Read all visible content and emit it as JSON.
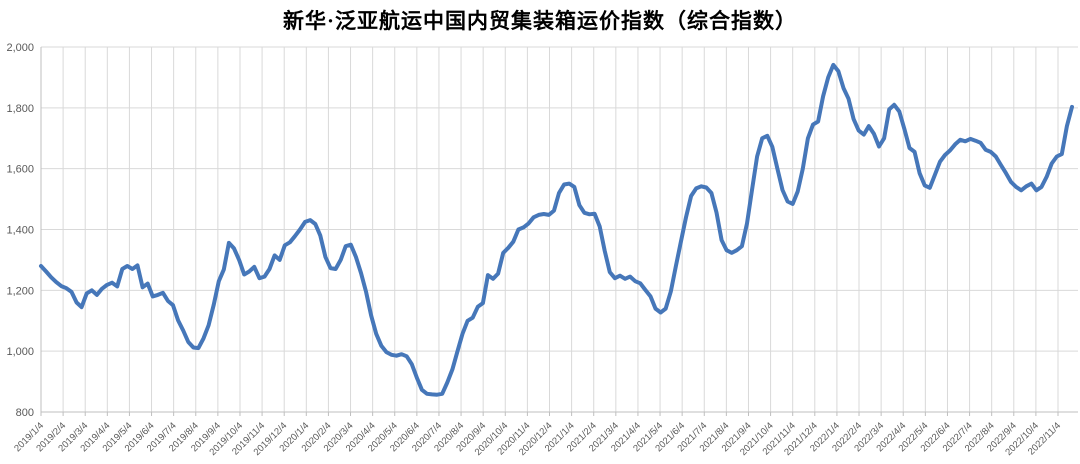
{
  "title": "新华·泛亚航运中国内贸集装箱运价指数（综合指数）",
  "colors": {
    "line": "#4677b9",
    "grid": "#d9d9d9",
    "axis": "#bfbfbf",
    "tick_label": "#595959",
    "title": "#000000",
    "background": "#ffffff"
  },
  "y_axis": {
    "min": 800,
    "max": 2000,
    "step": 200,
    "tick_labels": [
      "2,000",
      "1,800",
      "1,600",
      "1,400",
      "1,200",
      "1,000",
      "800"
    ],
    "tick_values": [
      2000,
      1800,
      1600,
      1400,
      1200,
      1000,
      800
    ]
  },
  "x_axis": {
    "tick_labels": [
      "2019/1/4",
      "2019/2/4",
      "2019/3/4",
      "2019/4/4",
      "2019/5/4",
      "2019/6/4",
      "2019/7/4",
      "2019/8/4",
      "2019/9/4",
      "2019/10/4",
      "2019/11/4",
      "2019/12/4",
      "2020/1/4",
      "2020/2/4",
      "2020/3/4",
      "2020/4/4",
      "2020/5/4",
      "2020/6/4",
      "2020/7/4",
      "2020/8/4",
      "2020/9/4",
      "2020/10/4",
      "2020/11/4",
      "2020/12/4",
      "2021/1/4",
      "2021/2/4",
      "2021/3/4",
      "2021/4/4",
      "2021/5/4",
      "2021/6/4",
      "2021/7/4",
      "2021/8/4",
      "2021/9/4",
      "2021/10/4",
      "2021/11/4",
      "2021/12/4",
      "2022/1/4",
      "2022/2/4",
      "2022/3/4",
      "2022/4/4",
      "2022/5/4",
      "2022/6/4",
      "2022/7/4",
      "2022/8/4",
      "2022/9/4",
      "2022/10/4",
      "2022/11/4"
    ]
  },
  "chart_data": {
    "type": "line",
    "title": "新华·泛亚航运中国内贸集装箱运价指数（综合指数）",
    "xlabel": "",
    "ylabel": "",
    "ylim": [
      800,
      2000
    ],
    "grid": true,
    "legend": false,
    "x_start": "2019/1/4",
    "x_end": "2022/11/25",
    "interval": "weekly",
    "series_name": "综合指数",
    "values": [
      1280,
      1262,
      1243,
      1227,
      1214,
      1207,
      1195,
      1160,
      1145,
      1190,
      1200,
      1185,
      1205,
      1218,
      1225,
      1213,
      1270,
      1280,
      1270,
      1282,
      1210,
      1222,
      1180,
      1185,
      1192,
      1165,
      1151,
      1101,
      1068,
      1030,
      1012,
      1010,
      1042,
      1085,
      1152,
      1230,
      1268,
      1356,
      1338,
      1300,
      1252,
      1262,
      1277,
      1240,
      1245,
      1270,
      1315,
      1300,
      1348,
      1358,
      1378,
      1400,
      1425,
      1431,
      1418,
      1380,
      1310,
      1273,
      1270,
      1300,
      1345,
      1350,
      1310,
      1257,
      1196,
      1118,
      1057,
      1018,
      997,
      988,
      985,
      990,
      983,
      957,
      913,
      873,
      860,
      858,
      857,
      860,
      897,
      940,
      1000,
      1057,
      1100,
      1110,
      1146,
      1158,
      1250,
      1238,
      1255,
      1323,
      1340,
      1360,
      1400,
      1407,
      1420,
      1440,
      1448,
      1451,
      1448,
      1462,
      1520,
      1548,
      1551,
      1540,
      1480,
      1455,
      1450,
      1452,
      1410,
      1330,
      1260,
      1240,
      1248,
      1238,
      1245,
      1230,
      1223,
      1201,
      1180,
      1140,
      1127,
      1140,
      1196,
      1280,
      1360,
      1440,
      1510,
      1535,
      1542,
      1538,
      1520,
      1456,
      1365,
      1332,
      1323,
      1332,
      1345,
      1420,
      1530,
      1640,
      1700,
      1708,
      1672,
      1600,
      1530,
      1492,
      1484,
      1525,
      1600,
      1700,
      1745,
      1755,
      1838,
      1900,
      1941,
      1920,
      1865,
      1830,
      1763,
      1725,
      1712,
      1740,
      1715,
      1673,
      1700,
      1795,
      1810,
      1788,
      1730,
      1668,
      1655,
      1585,
      1545,
      1537,
      1580,
      1623,
      1645,
      1660,
      1680,
      1695,
      1690,
      1698,
      1692,
      1685,
      1662,
      1655,
      1640,
      1612,
      1585,
      1556,
      1540,
      1529,
      1542,
      1551,
      1529,
      1540,
      1573,
      1617,
      1640,
      1648,
      1740,
      1803
    ]
  }
}
